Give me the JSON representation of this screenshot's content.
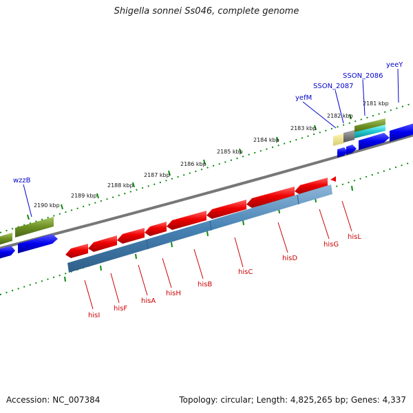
{
  "title": "Shigella sonnei Ss046, complete genome",
  "footer": {
    "accession": "Accession: NC_007384",
    "stats": "Topology: circular; Length: 4,825,265 bp; Genes: 4,337"
  },
  "colors": {
    "forward_gene_label": "#0000cc",
    "reverse_gene_label": "#cc0000",
    "gene_red": "#ee0000",
    "cds_blue": "#4682b4",
    "strand_blue": "#0000ee",
    "olive": "#6b8e23",
    "tick_green": "#0a8a0a",
    "backbone": "#777777"
  },
  "scale_labels": [
    "2181 kbp",
    "2182 kbp",
    "2183 kbp",
    "2184 kbp",
    "2185 kbp",
    "2186 kbp",
    "2187 kbp",
    "2188 kbp",
    "2189 kbp",
    "2190 kbp"
  ],
  "forward_labels": [
    "yeeY",
    "SSON_2086",
    "SSON_2087",
    "yefM",
    "wzzB"
  ],
  "reverse_labels": [
    "hisL",
    "hisG",
    "hisD",
    "hisC",
    "hisB",
    "hisH",
    "hisA",
    "hisF",
    "hisI"
  ]
}
